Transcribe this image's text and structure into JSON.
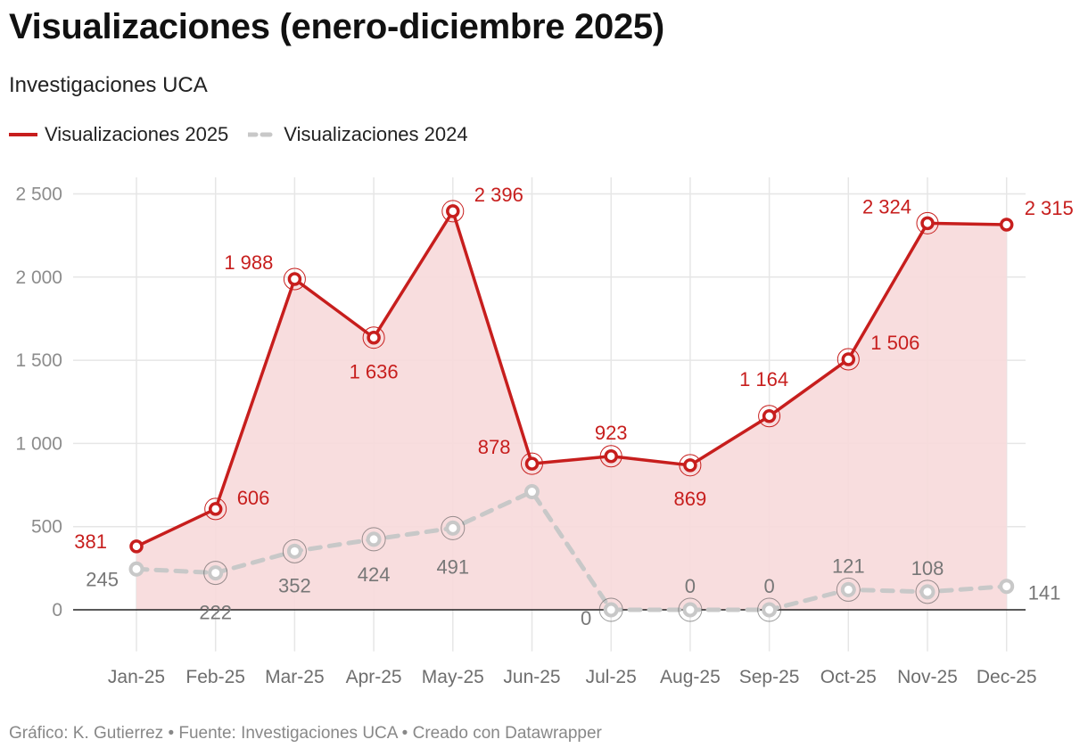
{
  "header": {
    "title": "Visualizaciones (enero-diciembre 2025)",
    "subtitle": "Investigaciones UCA"
  },
  "footer": {
    "credit": "Gráfico: K. Gutierrez • Fuente: Investigaciones UCA • Creado con Datawrapper"
  },
  "chart_data": {
    "type": "line",
    "title": "Visualizaciones (enero-diciembre 2025)",
    "subtitle": "Investigaciones UCA",
    "categories": [
      "Jan-25",
      "Feb-25",
      "Mar-25",
      "Apr-25",
      "May-25",
      "Jun-25",
      "Jul-25",
      "Aug-25",
      "Sep-25",
      "Oct-25",
      "Nov-25",
      "Dec-25"
    ],
    "series": [
      {
        "name": "Visualizaciones 2025",
        "values": [
          381,
          606,
          1988,
          1636,
          2396,
          878,
          923,
          869,
          1164,
          1506,
          2324,
          2315
        ],
        "labels": [
          "381",
          "606",
          "1 988",
          "1 636",
          "2 396",
          "878",
          "923",
          "869",
          "1 164",
          "1 506",
          "2 324",
          "2 315"
        ],
        "color": "#c71e1d",
        "style": "solid",
        "area_fill": "#f7d9da"
      },
      {
        "name": "Visualizaciones 2024",
        "values": [
          245,
          222,
          352,
          424,
          491,
          710,
          0,
          0,
          0,
          121,
          108,
          141
        ],
        "labels": [
          "245",
          "222",
          "352",
          "424",
          "491",
          "",
          "0",
          "0",
          "0",
          "121",
          "108",
          "141"
        ],
        "color": "#c8c8c8",
        "style": "dashed"
      }
    ],
    "yticks": [
      0,
      500,
      1000,
      1500,
      2000,
      2500
    ],
    "ytick_labels": [
      "0",
      "500",
      "1 000",
      "1 500",
      "2 000",
      "2 500"
    ],
    "ylim": [
      -250,
      2600
    ],
    "xlabel": "",
    "ylabel": "",
    "grid": true,
    "legend_position": "top-left"
  }
}
